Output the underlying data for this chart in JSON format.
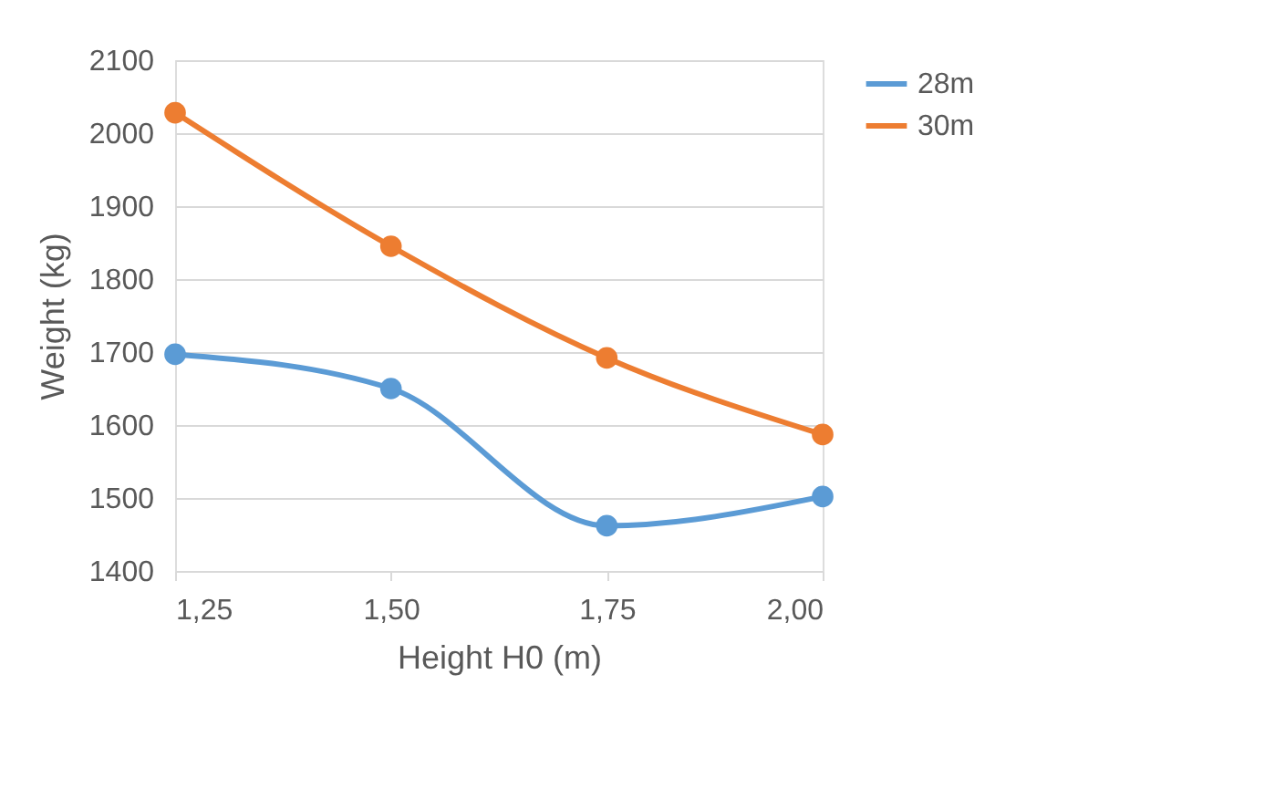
{
  "chart_data": {
    "type": "line",
    "xlabel": "Height H0 (m)",
    "ylabel": "Weight (kg)",
    "x": [
      1.25,
      1.5,
      1.75,
      2.0
    ],
    "series": [
      {
        "name": "28m",
        "color": "#5b9bd5",
        "values": [
          1697,
          1650,
          1462,
          1502
        ]
      },
      {
        "name": "30m",
        "color": "#ed7d31",
        "values": [
          2028,
          1845,
          1692,
          1587
        ]
      }
    ],
    "xlim": [
      1.25,
      2.0
    ],
    "xticks": [
      {
        "value": 1.25,
        "label": "1,25"
      },
      {
        "value": 1.5,
        "label": "1,50"
      },
      {
        "value": 1.75,
        "label": "1,75"
      },
      {
        "value": 2.0,
        "label": "2,00"
      }
    ],
    "ylim": [
      1400,
      2100
    ],
    "yticks": [
      1400,
      1500,
      1600,
      1700,
      1800,
      1900,
      2000,
      2100
    ],
    "grid": "y",
    "legend": "right",
    "marker": "circle",
    "line_style": "solid"
  }
}
